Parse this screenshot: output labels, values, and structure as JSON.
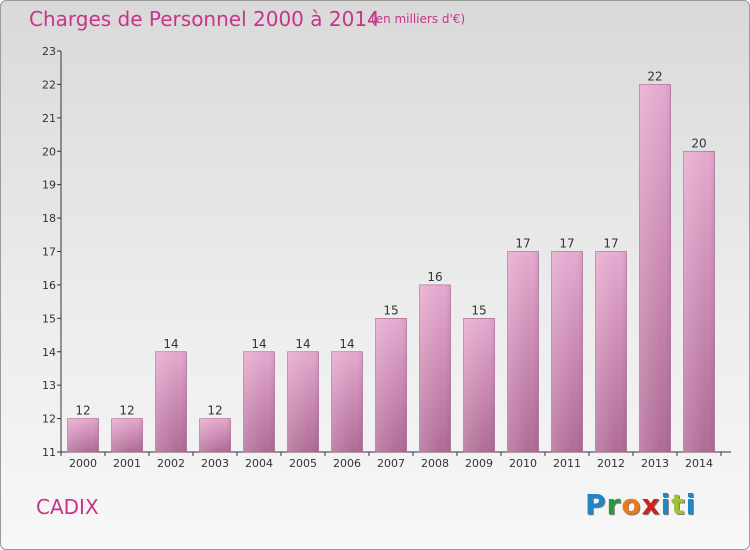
{
  "header": {
    "title": "Charges de Personnel 2000 à 2014",
    "subtitle": "(en milliers d'€)"
  },
  "footer": {
    "place": "CADIX",
    "brand": {
      "text": "Proxiti",
      "letter_colors": [
        "#1f86c8",
        "#2a9a3a",
        "#e87a1e",
        "#d02020",
        "#1f86c8",
        "#9cc23a",
        "#1f86c8"
      ]
    }
  },
  "colors": {
    "bar_top": "#e6a9cf",
    "bar_bottom": "#b06b95",
    "axis": "#333333",
    "title": "#c8348a"
  },
  "chart_data": {
    "type": "bar",
    "title": "Charges de Personnel 2000 à 2014",
    "xlabel": "",
    "ylabel": "",
    "categories": [
      "2000",
      "2001",
      "2002",
      "2003",
      "2004",
      "2005",
      "2006",
      "2007",
      "2008",
      "2009",
      "2010",
      "2011",
      "2012",
      "2013",
      "2014"
    ],
    "values": [
      12,
      12,
      14,
      12,
      14,
      14,
      14,
      15,
      16,
      15,
      17,
      17,
      17,
      22,
      20
    ],
    "ylim": [
      11,
      23
    ],
    "yticks": [
      11,
      12,
      13,
      14,
      15,
      16,
      17,
      18,
      19,
      20,
      21,
      22,
      23
    ],
    "grid": false,
    "data_labels": true
  }
}
